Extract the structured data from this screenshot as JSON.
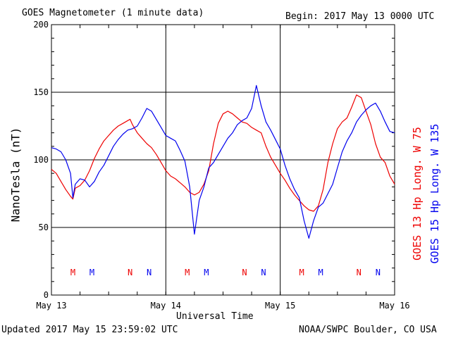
{
  "header": {
    "title": "GOES Magnetometer (1 minute data)",
    "begin": "Begin:  2017 May 13 0000 UTC"
  },
  "footer": {
    "updated": "Updated 2017 May 15 23:59:02 UTC",
    "credit": "NOAA/SWPC Boulder, CO USA"
  },
  "legend": {
    "red_label": "GOES 13 Hp  Long. W 75",
    "blue_label": "GOES 15 Hp  Long. W 135"
  },
  "colors": {
    "red": "#ee0000",
    "blue": "#0000ee"
  },
  "chart_data": {
    "type": "line",
    "title": "GOES Magnetometer (1 minute data)",
    "xlabel": "Universal Time",
    "ylabel": "NanoTesla (nT)",
    "ylim": [
      0,
      200
    ],
    "xlim": [
      0,
      72
    ],
    "x_unit": "hours since 2017 May 13 0000 UTC",
    "x_ticks": [
      {
        "x": 0,
        "label": "May 13"
      },
      {
        "x": 24,
        "label": "May 14"
      },
      {
        "x": 48,
        "label": "May 15"
      },
      {
        "x": 72,
        "label": "May 16"
      }
    ],
    "y_ticks": [
      0,
      50,
      100,
      150,
      200
    ],
    "grid": true,
    "markers": [
      {
        "label": "M",
        "x": 4.5,
        "series": "GOES 13 Hp"
      },
      {
        "label": "M",
        "x": 8.5,
        "series": "GOES 15 Hp"
      },
      {
        "label": "N",
        "x": 16.5,
        "series": "GOES 13 Hp"
      },
      {
        "label": "N",
        "x": 20.5,
        "series": "GOES 15 Hp"
      },
      {
        "label": "M",
        "x": 28.5,
        "series": "GOES 13 Hp"
      },
      {
        "label": "M",
        "x": 32.5,
        "series": "GOES 15 Hp"
      },
      {
        "label": "N",
        "x": 40.5,
        "series": "GOES 13 Hp"
      },
      {
        "label": "N",
        "x": 44.5,
        "series": "GOES 15 Hp"
      },
      {
        "label": "M",
        "x": 52.5,
        "series": "GOES 13 Hp"
      },
      {
        "label": "M",
        "x": 56.5,
        "series": "GOES 15 Hp"
      },
      {
        "label": "N",
        "x": 64.5,
        "series": "GOES 13 Hp"
      },
      {
        "label": "N",
        "x": 68.5,
        "series": "GOES 15 Hp"
      }
    ],
    "series": [
      {
        "name": "GOES 13 Hp  Long. W 75",
        "color": "#ee0000",
        "x": [
          0,
          1,
          2,
          3,
          4,
          4.5,
          5,
          6,
          7,
          8,
          9,
          10,
          11,
          12,
          13,
          14,
          15,
          16,
          16.5,
          17,
          18,
          19,
          20,
          21,
          22,
          23,
          24,
          25,
          26,
          27,
          28,
          29,
          30,
          31,
          32,
          33,
          34,
          35,
          36,
          37,
          38,
          39,
          40,
          41,
          42,
          43,
          44,
          45,
          46,
          47,
          48,
          49,
          50,
          51,
          52,
          53,
          54,
          55,
          56,
          57,
          58,
          59,
          60,
          61,
          62,
          63,
          64,
          65,
          66,
          67,
          68,
          69,
          70,
          71,
          72
        ],
        "y": [
          93,
          90,
          84,
          78,
          73,
          71,
          79,
          81,
          85,
          92,
          101,
          108,
          114,
          118,
          122,
          125,
          127,
          129,
          130,
          126,
          120,
          116,
          112,
          109,
          104,
          98,
          92,
          88,
          86,
          83,
          80,
          76,
          74,
          76,
          82,
          92,
          112,
          127,
          134,
          136,
          134,
          131,
          128,
          127,
          124,
          122,
          120,
          110,
          102,
          96,
          90,
          85,
          79,
          74,
          70,
          66,
          63,
          62,
          66,
          78,
          98,
          112,
          123,
          128,
          131,
          139,
          148,
          146,
          136,
          126,
          112,
          102,
          98,
          88,
          82
        ]
      },
      {
        "name": "GOES 15 Hp  Long. W 135",
        "color": "#0000ee",
        "x": [
          0,
          1,
          2,
          3,
          4,
          4.5,
          5,
          6,
          7,
          8,
          9,
          10,
          11,
          12,
          13,
          14,
          15,
          16,
          17,
          18,
          19,
          20,
          21,
          22,
          23,
          24,
          25,
          26,
          27,
          28,
          29,
          30,
          31,
          32,
          33,
          34,
          35,
          36,
          37,
          38,
          39,
          40,
          41,
          42,
          43,
          44,
          45,
          46,
          47,
          48,
          49,
          50,
          51,
          52,
          53,
          54,
          55,
          56,
          57,
          58,
          59,
          60,
          61,
          62,
          63,
          64,
          65,
          66,
          67,
          68,
          69,
          70,
          71,
          72
        ],
        "y": [
          109,
          108,
          106,
          100,
          90,
          72,
          82,
          86,
          85,
          80,
          84,
          91,
          96,
          103,
          110,
          115,
          119,
          122,
          123,
          125,
          131,
          138,
          136,
          130,
          124,
          118,
          116,
          114,
          107,
          99,
          80,
          45,
          70,
          80,
          94,
          98,
          104,
          110,
          116,
          120,
          126,
          129,
          131,
          138,
          155,
          140,
          128,
          122,
          115,
          108,
          96,
          86,
          78,
          72,
          55,
          42,
          55,
          65,
          68,
          75,
          82,
          94,
          106,
          114,
          120,
          128,
          133,
          137,
          140,
          142,
          136,
          128,
          121,
          120
        ]
      }
    ]
  }
}
